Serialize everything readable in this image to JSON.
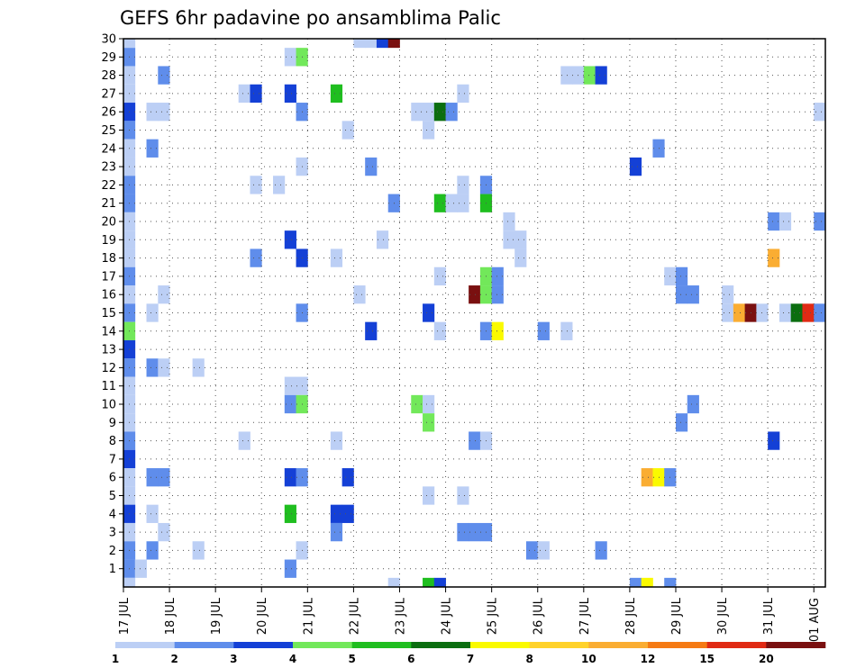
{
  "chart_data": {
    "type": "heatmap",
    "title": "GEFS 6hr padavine po ansamblima Palic",
    "x_labels": [
      "17 JUL",
      "18 JUL",
      "19 JUL",
      "20 JUL",
      "21 JUL",
      "22 JUL",
      "23 JUL",
      "24 JUL",
      "25 JUL",
      "26 JUL",
      "27 JUL",
      "28 JUL",
      "29 JUL",
      "30 JUL",
      "31 JUL",
      "01 AUG"
    ],
    "y_labels": [
      "1",
      "2",
      "3",
      "4",
      "5",
      "6",
      "7",
      "8",
      "9",
      "10",
      "11",
      "12",
      "13",
      "14",
      "15",
      "16",
      "17",
      "18",
      "19",
      "20",
      "21",
      "22",
      "23",
      "24",
      "25",
      "26",
      "27",
      "28",
      "29",
      "30"
    ],
    "x_range": [
      0,
      61
    ],
    "y_range": [
      0,
      30
    ],
    "grid": true,
    "colorbar": {
      "levels": [
        "1",
        "2",
        "3",
        "4",
        "5",
        "6",
        "7",
        "8",
        "10",
        "12",
        "15",
        "20"
      ],
      "colors": [
        "#bccff5",
        "#5f8deb",
        "#1440d6",
        "#72e85a",
        "#1fbe1f",
        "#0b6e10",
        "#fafa00",
        "#ffd22a",
        "#faad32",
        "#f57a14",
        "#e02a14",
        "#7a1010"
      ]
    },
    "cells": [
      [
        0,
        30,
        1
      ],
      [
        0,
        29,
        2
      ],
      [
        0,
        28,
        1
      ],
      [
        0,
        27,
        1
      ],
      [
        0,
        26,
        3
      ],
      [
        0,
        25,
        2
      ],
      [
        0,
        24,
        1
      ],
      [
        0,
        23,
        1
      ],
      [
        0,
        22,
        2
      ],
      [
        0,
        21,
        2
      ],
      [
        0,
        20,
        1
      ],
      [
        0,
        19,
        1
      ],
      [
        0,
        18,
        1
      ],
      [
        0,
        17,
        2
      ],
      [
        0,
        16,
        1
      ],
      [
        0,
        15,
        2
      ],
      [
        0,
        14,
        4
      ],
      [
        0,
        13,
        3
      ],
      [
        0,
        12,
        2
      ],
      [
        0,
        11,
        1
      ],
      [
        0,
        10,
        1
      ],
      [
        0,
        9,
        1
      ],
      [
        0,
        8,
        2
      ],
      [
        0,
        7,
        3
      ],
      [
        0,
        6,
        1
      ],
      [
        0,
        5,
        1
      ],
      [
        0,
        4,
        3
      ],
      [
        0,
        3,
        1
      ],
      [
        0,
        2,
        2
      ],
      [
        0,
        1,
        2
      ],
      [
        0,
        0,
        1
      ],
      [
        1,
        1,
        1
      ],
      [
        2,
        26,
        1
      ],
      [
        2,
        24,
        2
      ],
      [
        2,
        15,
        1
      ],
      [
        2,
        12,
        2
      ],
      [
        2,
        6,
        2
      ],
      [
        2,
        4,
        1
      ],
      [
        2,
        2,
        2
      ],
      [
        3,
        28,
        2
      ],
      [
        3,
        26,
        1
      ],
      [
        3,
        16,
        1
      ],
      [
        3,
        12,
        1
      ],
      [
        3,
        6,
        2
      ],
      [
        3,
        3,
        1
      ],
      [
        6,
        12,
        1
      ],
      [
        6,
        2,
        1
      ],
      [
        10,
        27,
        1
      ],
      [
        10,
        8,
        1
      ],
      [
        11,
        27,
        3
      ],
      [
        11,
        22,
        1
      ],
      [
        11,
        18,
        2
      ],
      [
        13,
        22,
        1
      ],
      [
        14,
        29,
        1
      ],
      [
        14,
        27,
        3
      ],
      [
        14,
        19,
        3
      ],
      [
        14,
        11,
        1
      ],
      [
        14,
        10,
        2
      ],
      [
        14,
        6,
        3
      ],
      [
        14,
        4,
        5
      ],
      [
        14,
        1,
        2
      ],
      [
        15,
        29,
        4
      ],
      [
        15,
        26,
        2
      ],
      [
        15,
        23,
        1
      ],
      [
        15,
        18,
        3
      ],
      [
        15,
        15,
        2
      ],
      [
        15,
        11,
        1
      ],
      [
        15,
        10,
        4
      ],
      [
        15,
        6,
        2
      ],
      [
        15,
        2,
        1
      ],
      [
        18,
        27,
        5
      ],
      [
        18,
        18,
        1
      ],
      [
        18,
        8,
        1
      ],
      [
        18,
        4,
        3
      ],
      [
        18,
        3,
        2
      ],
      [
        19,
        25,
        1
      ],
      [
        19,
        6,
        3
      ],
      [
        19,
        4,
        3
      ],
      [
        20,
        30,
        1
      ],
      [
        20,
        16,
        1
      ],
      [
        21,
        30,
        1
      ],
      [
        21,
        23,
        2
      ],
      [
        21,
        14,
        3
      ],
      [
        22,
        30,
        3
      ],
      [
        23,
        30,
        20
      ],
      [
        23,
        21,
        2
      ],
      [
        22,
        19,
        1
      ],
      [
        23,
        0,
        1
      ],
      [
        25,
        26,
        1
      ],
      [
        25,
        10,
        4
      ],
      [
        26,
        26,
        1
      ],
      [
        26,
        25,
        1
      ],
      [
        26,
        15,
        3
      ],
      [
        26,
        10,
        1
      ],
      [
        26,
        9,
        4
      ],
      [
        26,
        5,
        1
      ],
      [
        26,
        0,
        5
      ],
      [
        27,
        26,
        6
      ],
      [
        27,
        21,
        5
      ],
      [
        27,
        17,
        1
      ],
      [
        27,
        14,
        1
      ],
      [
        27,
        0,
        3
      ],
      [
        28,
        26,
        2
      ],
      [
        28,
        21,
        1
      ],
      [
        29,
        27,
        1
      ],
      [
        29,
        22,
        1
      ],
      [
        29,
        21,
        1
      ],
      [
        29,
        5,
        1
      ],
      [
        29,
        3,
        2
      ],
      [
        30,
        16,
        20
      ],
      [
        30,
        8,
        2
      ],
      [
        30,
        3,
        2
      ],
      [
        31,
        22,
        2
      ],
      [
        31,
        21,
        5
      ],
      [
        31,
        17,
        4
      ],
      [
        31,
        16,
        4
      ],
      [
        31,
        14,
        2
      ],
      [
        31,
        8,
        1
      ],
      [
        31,
        3,
        2
      ],
      [
        32,
        17,
        2
      ],
      [
        32,
        16,
        2
      ],
      [
        32,
        14,
        7
      ],
      [
        33,
        20,
        1
      ],
      [
        33,
        19,
        1
      ],
      [
        34,
        19,
        1
      ],
      [
        34,
        18,
        1
      ],
      [
        35,
        2,
        2
      ],
      [
        36,
        14,
        2
      ],
      [
        36,
        2,
        1
      ],
      [
        38,
        14,
        1
      ],
      [
        38,
        28,
        1
      ],
      [
        39,
        28,
        1
      ],
      [
        40,
        28,
        4
      ],
      [
        41,
        28,
        3
      ],
      [
        41,
        2,
        2
      ],
      [
        44,
        23,
        3
      ],
      [
        44,
        0,
        2
      ],
      [
        45,
        6,
        10
      ],
      [
        45,
        0,
        7
      ],
      [
        46,
        6,
        7
      ],
      [
        47,
        17,
        1
      ],
      [
        47,
        6,
        2
      ],
      [
        47,
        0,
        2
      ],
      [
        46,
        24,
        2
      ],
      [
        48,
        17,
        2
      ],
      [
        48,
        16,
        2
      ],
      [
        48,
        9,
        2
      ],
      [
        49,
        16,
        2
      ],
      [
        49,
        10,
        2
      ],
      [
        52,
        16,
        1
      ],
      [
        52,
        15,
        1
      ],
      [
        53,
        15,
        10
      ],
      [
        54,
        15,
        20
      ],
      [
        55,
        15,
        1
      ],
      [
        56,
        20,
        2
      ],
      [
        56,
        18,
        10
      ],
      [
        56,
        8,
        3
      ],
      [
        57,
        20,
        1
      ],
      [
        57,
        15,
        1
      ],
      [
        58,
        15,
        6
      ],
      [
        59,
        15,
        15
      ],
      [
        60,
        26,
        1
      ],
      [
        60,
        20,
        2
      ],
      [
        60,
        15,
        2
      ]
    ]
  }
}
